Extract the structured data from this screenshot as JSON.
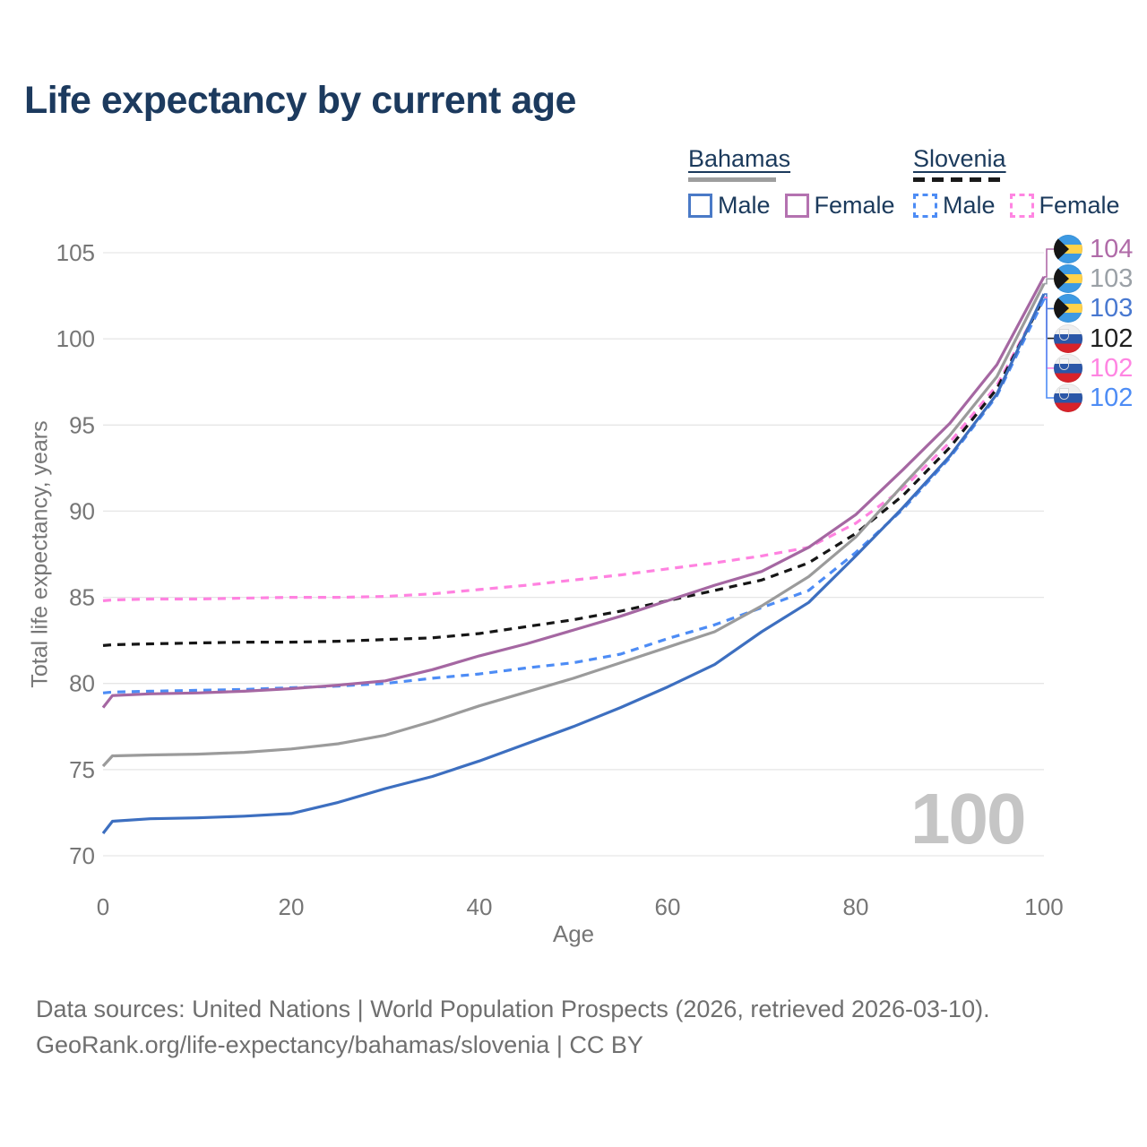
{
  "title": "Life expectancy by current age",
  "watermark": "100",
  "legend": {
    "groups": [
      {
        "label": "Bahamas",
        "line_style": "solid",
        "underline_color": "#9e9e9e",
        "items": [
          {
            "label": "Male",
            "color": "#4a7ac7"
          },
          {
            "label": "Female",
            "color": "#b472b0"
          }
        ]
      },
      {
        "label": "Slovenia",
        "line_style": "dashed",
        "underline_color": "#1a1a1a",
        "items": [
          {
            "label": "Male",
            "color": "#4d8cf5"
          },
          {
            "label": "Female",
            "color": "#ff85e2"
          }
        ]
      }
    ]
  },
  "footer": {
    "line1": "Data sources: United Nations | World Population Prospects (2026, retrieved 2026-03-10).",
    "line2": "GeoRank.org/life-expectancy/bahamas/slovenia | CC BY"
  },
  "chart_data": {
    "type": "line",
    "title": "Life expectancy by current age",
    "xlabel": "Age",
    "ylabel": "Total life expectancy, years",
    "x_range": [
      0,
      100
    ],
    "y_range": [
      70,
      105
    ],
    "x_ticks": [
      0,
      20,
      40,
      60,
      80,
      100
    ],
    "y_ticks": [
      70,
      75,
      80,
      85,
      90,
      95,
      100,
      105
    ],
    "grid": "horizontal",
    "legend_position": "top-right",
    "ages": [
      0,
      1,
      5,
      10,
      15,
      20,
      25,
      30,
      35,
      40,
      45,
      50,
      55,
      60,
      65,
      70,
      75,
      80,
      85,
      90,
      95,
      100
    ],
    "series": [
      {
        "key": "slovenia_female",
        "name": "Slovenia Female",
        "country": "Slovenia",
        "sex": "female",
        "style": "dashed",
        "color": "#ff82e0",
        "values": [
          84.8,
          84.85,
          84.9,
          84.9,
          84.95,
          85.0,
          85.0,
          85.05,
          85.2,
          85.45,
          85.7,
          86.0,
          86.3,
          86.65,
          87.0,
          87.4,
          87.9,
          89.3,
          91.3,
          94.0,
          97.3,
          102.4
        ]
      },
      {
        "key": "slovenia_all",
        "name": "Slovenia",
        "country": "Slovenia",
        "sex": "all",
        "style": "dashed",
        "color": "#161616",
        "values": [
          82.2,
          82.25,
          82.3,
          82.35,
          82.4,
          82.4,
          82.45,
          82.55,
          82.65,
          82.9,
          83.3,
          83.7,
          84.2,
          84.8,
          85.4,
          86.0,
          87.0,
          88.7,
          90.9,
          93.7,
          97.1,
          102.4
        ]
      },
      {
        "key": "slovenia_male",
        "name": "Slovenia Male",
        "country": "Slovenia",
        "sex": "male",
        "style": "dashed",
        "color": "#4d8cf5",
        "values": [
          79.45,
          79.5,
          79.55,
          79.6,
          79.65,
          79.75,
          79.85,
          80.0,
          80.3,
          80.55,
          80.9,
          81.2,
          81.7,
          82.6,
          83.4,
          84.4,
          85.4,
          87.6,
          90.1,
          93.1,
          96.7,
          102.3
        ]
      },
      {
        "key": "bahamas_male",
        "name": "Bahamas Male",
        "country": "Bahamas",
        "sex": "male",
        "style": "solid",
        "color": "#3d6fc0",
        "values": [
          71.3,
          72.0,
          72.15,
          72.2,
          72.3,
          72.45,
          73.1,
          73.9,
          74.6,
          75.5,
          76.5,
          77.5,
          78.6,
          79.8,
          81.1,
          83.0,
          84.7,
          87.4,
          90.2,
          93.2,
          96.8,
          102.6
        ]
      },
      {
        "key": "bahamas_all",
        "name": "Bahamas",
        "country": "Bahamas",
        "sex": "all",
        "style": "solid",
        "color": "#9b9b9b",
        "values": [
          75.2,
          75.8,
          75.85,
          75.9,
          76.0,
          76.2,
          76.5,
          77.0,
          77.8,
          78.7,
          79.5,
          80.3,
          81.2,
          82.1,
          83.0,
          84.5,
          86.2,
          88.5,
          91.5,
          94.4,
          97.8,
          103.2
        ]
      },
      {
        "key": "bahamas_female",
        "name": "Bahamas Female",
        "country": "Bahamas",
        "sex": "female",
        "style": "solid",
        "color": "#a567a2",
        "values": [
          78.6,
          79.3,
          79.4,
          79.45,
          79.55,
          79.7,
          79.9,
          80.15,
          80.8,
          81.6,
          82.3,
          83.1,
          83.9,
          84.8,
          85.7,
          86.5,
          87.9,
          89.8,
          92.4,
          95.1,
          98.5,
          103.6
        ]
      }
    ],
    "end_labels": [
      {
        "series": "bahamas_female",
        "flag": "bahamas",
        "value": "104",
        "color": "#b06ba8"
      },
      {
        "series": "bahamas_all",
        "flag": "bahamas",
        "value": "103",
        "color": "#9aa0a6"
      },
      {
        "series": "bahamas_male",
        "flag": "bahamas",
        "value": "103",
        "color": "#4878d0"
      },
      {
        "series": "slovenia_all",
        "flag": "slovenia",
        "value": "102",
        "color": "#1f1f1f"
      },
      {
        "series": "slovenia_female",
        "flag": "slovenia",
        "value": "102",
        "color": "#ff85e2"
      },
      {
        "series": "slovenia_male",
        "flag": "slovenia",
        "value": "102",
        "color": "#4d8cf5"
      }
    ]
  }
}
